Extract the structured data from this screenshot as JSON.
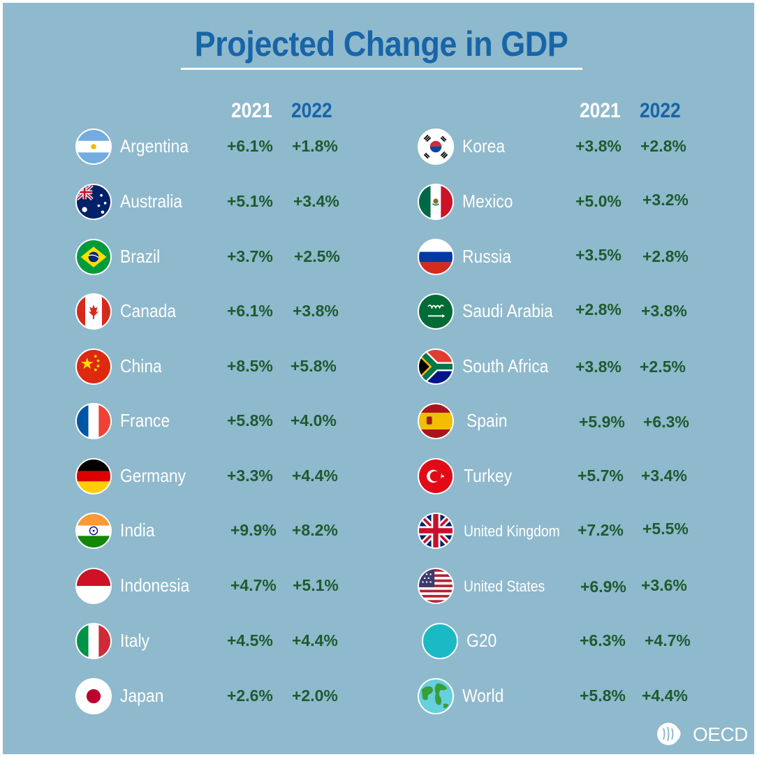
{
  "title": "Projected Change in GDP",
  "headers": {
    "year1": "2021",
    "year2": "2022"
  },
  "left": [
    {
      "name": "Argentina",
      "y2021": "+6.1%",
      "y2022": "+1.8%",
      "flag": "argentina-flag-icon"
    },
    {
      "name": "Australia",
      "y2021": "+5.1%",
      "y2022": "+3.4%",
      "flag": "australia-flag-icon"
    },
    {
      "name": "Brazil",
      "y2021": "+3.7%",
      "y2022": "+2.5%",
      "flag": "brazil-flag-icon"
    },
    {
      "name": "Canada",
      "y2021": "+6.1%",
      "y2022": "+3.8%",
      "flag": "canada-flag-icon"
    },
    {
      "name": "China",
      "y2021": "+8.5%",
      "y2022": "+5.8%",
      "flag": "china-flag-icon"
    },
    {
      "name": "France",
      "y2021": "+5.8%",
      "y2022": "+4.0%",
      "flag": "france-flag-icon"
    },
    {
      "name": "Germany",
      "y2021": "+3.3%",
      "y2022": "+4.4%",
      "flag": "germany-flag-icon"
    },
    {
      "name": "India",
      "y2021": "+9.9%",
      "y2022": "+8.2%",
      "flag": "india-flag-icon"
    },
    {
      "name": "Indonesia",
      "y2021": "+4.7%",
      "y2022": "+5.1%",
      "flag": "indonesia-flag-icon"
    },
    {
      "name": "Italy",
      "y2021": "+4.5%",
      "y2022": "+4.4%",
      "flag": "italy-flag-icon"
    },
    {
      "name": "Japan",
      "y2021": "+2.6%",
      "y2022": "+2.0%",
      "flag": "japan-flag-icon"
    }
  ],
  "right": [
    {
      "name": "Korea",
      "y2021": "+3.8%",
      "y2022": "+2.8%",
      "flag": "korea-flag-icon"
    },
    {
      "name": "Mexico",
      "y2021": "+5.0%",
      "y2022": "+3.2%",
      "flag": "mexico-flag-icon"
    },
    {
      "name": "Russia",
      "y2021": "+3.5%",
      "y2022": "+2.8%",
      "flag": "russia-flag-icon"
    },
    {
      "name": "Saudi Arabia",
      "y2021": "+2.8%",
      "y2022": "+3.8%",
      "flag": "saudi-arabia-flag-icon"
    },
    {
      "name": "South Africa",
      "y2021": "+3.8%",
      "y2022": "+2.5%",
      "flag": "south-africa-flag-icon"
    },
    {
      "name": "Spain",
      "y2021": "+5.9%",
      "y2022": "+6.3%",
      "flag": "spain-flag-icon"
    },
    {
      "name": "Turkey",
      "y2021": "+5.7%",
      "y2022": "+3.4%",
      "flag": "turkey-flag-icon"
    },
    {
      "name": "United Kingdom",
      "y2021": "+7.2%",
      "y2022": "+5.5%",
      "flag": "united-kingdom-flag-icon"
    },
    {
      "name": "United States",
      "y2021": "+6.9%",
      "y2022": "+3.6%",
      "flag": "united-states-flag-icon"
    },
    {
      "name": "G20",
      "y2021": "+6.3%",
      "y2022": "+4.7%",
      "flag": "g20-circle-icon"
    },
    {
      "name": "World",
      "y2021": "+5.8%",
      "y2022": "+4.4%",
      "flag": "globe-icon"
    }
  ],
  "logo": {
    "text": "OECD",
    "icon": "oecd-logo-icon"
  },
  "colors": {
    "background": "#8fb9cd",
    "title": "#1865a8",
    "values": "#1e5b2f",
    "year2022": "#1865a8"
  }
}
